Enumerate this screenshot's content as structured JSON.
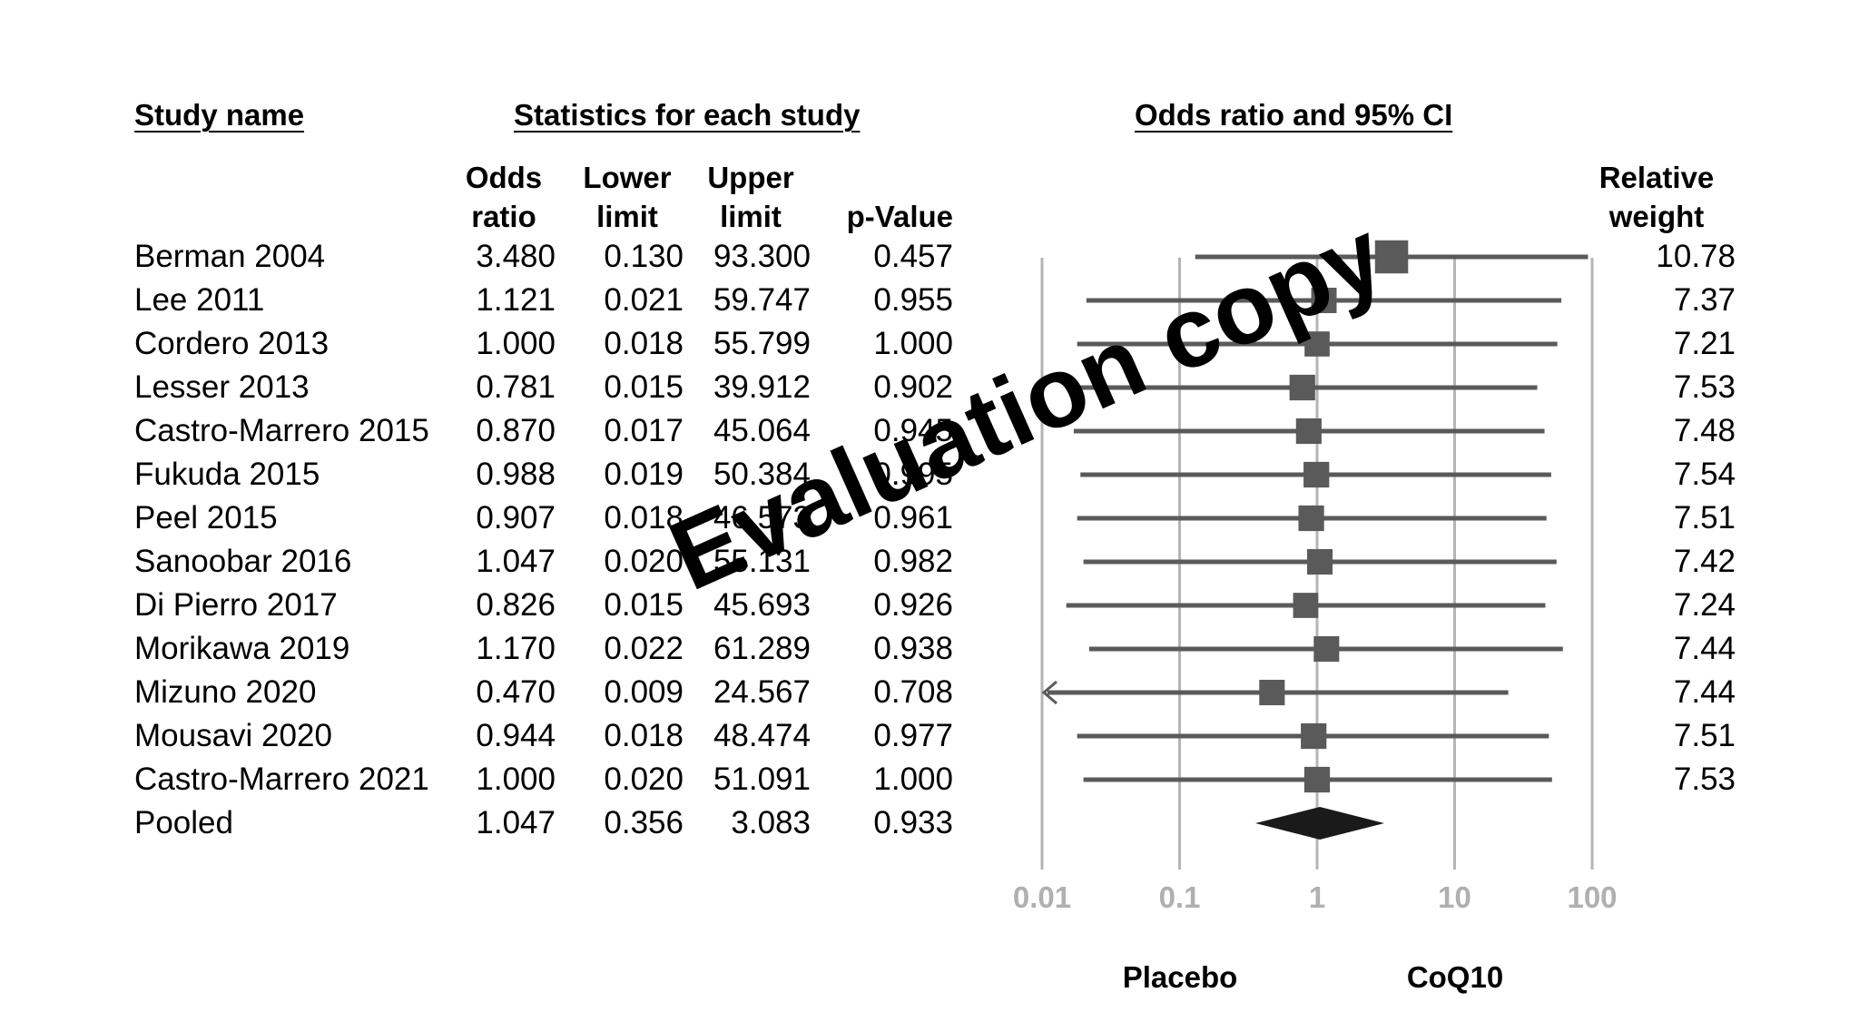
{
  "headers": {
    "study_name": "Study name",
    "stats": "Statistics for each study",
    "plot": "Odds ratio and 95% CI",
    "col_or": [
      "Odds",
      "ratio"
    ],
    "col_lower": [
      "Lower",
      "limit"
    ],
    "col_upper": [
      "Upper",
      "limit"
    ],
    "col_p": "p-Value",
    "col_weight": [
      "Relative",
      "weight"
    ]
  },
  "rows": [
    {
      "study": "Berman 2004",
      "or": "3.480",
      "lower": "0.130",
      "upper": "93.300",
      "p": "0.457",
      "weight": "10.78"
    },
    {
      "study": "Lee 2011",
      "or": "1.121",
      "lower": "0.021",
      "upper": "59.747",
      "p": "0.955",
      "weight": "7.37"
    },
    {
      "study": "Cordero 2013",
      "or": "1.000",
      "lower": "0.018",
      "upper": "55.799",
      "p": "1.000",
      "weight": "7.21"
    },
    {
      "study": "Lesser 2013",
      "or": "0.781",
      "lower": "0.015",
      "upper": "39.912",
      "p": "0.902",
      "weight": "7.53"
    },
    {
      "study": "Castro-Marrero 2015",
      "or": "0.870",
      "lower": "0.017",
      "upper": "45.064",
      "p": "0.945",
      "weight": "7.48"
    },
    {
      "study": "Fukuda 2015",
      "or": "0.988",
      "lower": "0.019",
      "upper": "50.384",
      "p": "0.995",
      "weight": "7.54"
    },
    {
      "study": "Peel 2015",
      "or": "0.907",
      "lower": "0.018",
      "upper": "46.573",
      "p": "0.961",
      "weight": "7.51"
    },
    {
      "study": "Sanoobar 2016",
      "or": "1.047",
      "lower": "0.020",
      "upper": "55.131",
      "p": "0.982",
      "weight": "7.42"
    },
    {
      "study": "Di Pierro 2017",
      "or": "0.826",
      "lower": "0.015",
      "upper": "45.693",
      "p": "0.926",
      "weight": "7.24"
    },
    {
      "study": "Morikawa 2019",
      "or": "1.170",
      "lower": "0.022",
      "upper": "61.289",
      "p": "0.938",
      "weight": "7.44"
    },
    {
      "study": "Mizuno 2020",
      "or": "0.470",
      "lower": "0.009",
      "upper": "24.567",
      "p": "0.708",
      "weight": "7.44"
    },
    {
      "study": "Mousavi 2020",
      "or": "0.944",
      "lower": "0.018",
      "upper": "48.474",
      "p": "0.977",
      "weight": "7.51"
    },
    {
      "study": "Castro-Marrero 2021",
      "or": "1.000",
      "lower": "0.020",
      "upper": "51.091",
      "p": "1.000",
      "weight": "7.53"
    },
    {
      "study": "Pooled",
      "or": "1.047",
      "lower": "0.356",
      "upper": "3.083",
      "p": "0.933",
      "weight": ""
    }
  ],
  "axis": {
    "ticks": [
      "0.01",
      "0.1",
      "1",
      "10",
      "100"
    ],
    "left_label": "Placebo",
    "right_label": "CoQ10"
  },
  "watermark": "Evaluation copy",
  "colors": {
    "marker": "#5a5a5a",
    "line": "#5a5a5a",
    "grid": "#b5b5b5",
    "pooled": "#1a1a1a",
    "tick_text": "#b0b0b0"
  },
  "chart_data": {
    "type": "forest",
    "x_scale": "log",
    "xlim": [
      0.01,
      100
    ],
    "x_ticks": [
      0.01,
      0.1,
      1,
      10,
      100
    ],
    "studies": [
      {
        "name": "Berman 2004",
        "or": 3.48,
        "lower": 0.13,
        "upper": 93.3,
        "weight": 10.78
      },
      {
        "name": "Lee 2011",
        "or": 1.121,
        "lower": 0.021,
        "upper": 59.747,
        "weight": 7.37
      },
      {
        "name": "Cordero 2013",
        "or": 1.0,
        "lower": 0.018,
        "upper": 55.799,
        "weight": 7.21
      },
      {
        "name": "Lesser 2013",
        "or": 0.781,
        "lower": 0.015,
        "upper": 39.912,
        "weight": 7.53
      },
      {
        "name": "Castro-Marrero 2015",
        "or": 0.87,
        "lower": 0.017,
        "upper": 45.064,
        "weight": 7.48
      },
      {
        "name": "Fukuda 2015",
        "or": 0.988,
        "lower": 0.019,
        "upper": 50.384,
        "weight": 7.54
      },
      {
        "name": "Peel 2015",
        "or": 0.907,
        "lower": 0.018,
        "upper": 46.573,
        "weight": 7.51
      },
      {
        "name": "Sanoobar 2016",
        "or": 1.047,
        "lower": 0.02,
        "upper": 55.131,
        "weight": 7.42
      },
      {
        "name": "Di Pierro 2017",
        "or": 0.826,
        "lower": 0.015,
        "upper": 45.693,
        "weight": 7.24
      },
      {
        "name": "Morikawa 2019",
        "or": 1.17,
        "lower": 0.022,
        "upper": 61.289,
        "weight": 7.44
      },
      {
        "name": "Mizuno 2020",
        "or": 0.47,
        "lower": 0.009,
        "upper": 24.567,
        "weight": 7.44
      },
      {
        "name": "Mousavi 2020",
        "or": 0.944,
        "lower": 0.018,
        "upper": 48.474,
        "weight": 7.51
      },
      {
        "name": "Castro-Marrero 2021",
        "or": 1.0,
        "lower": 0.02,
        "upper": 51.091,
        "weight": 7.53
      }
    ],
    "pooled": {
      "name": "Pooled",
      "or": 1.047,
      "lower": 0.356,
      "upper": 3.083
    }
  }
}
